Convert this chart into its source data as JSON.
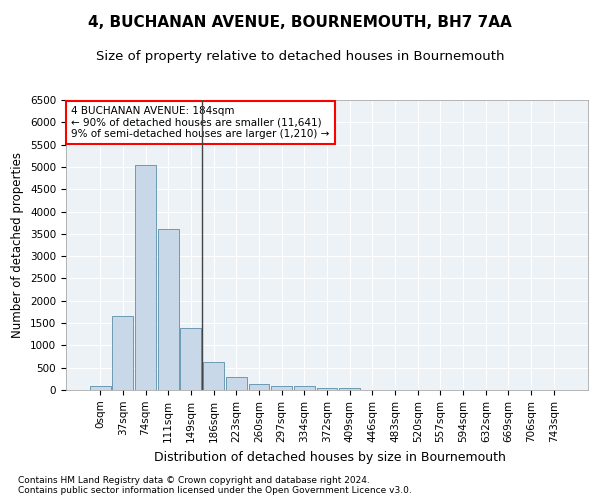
{
  "title": "4, BUCHANAN AVENUE, BOURNEMOUTH, BH7 7AA",
  "subtitle": "Size of property relative to detached houses in Bournemouth",
  "xlabel": "Distribution of detached houses by size in Bournemouth",
  "ylabel": "Number of detached properties",
  "bin_labels": [
    "0sqm",
    "37sqm",
    "74sqm",
    "111sqm",
    "149sqm",
    "186sqm",
    "223sqm",
    "260sqm",
    "297sqm",
    "334sqm",
    "372sqm",
    "409sqm",
    "446sqm",
    "483sqm",
    "520sqm",
    "557sqm",
    "594sqm",
    "632sqm",
    "669sqm",
    "706sqm",
    "743sqm"
  ],
  "bar_values": [
    80,
    1650,
    5050,
    3600,
    1400,
    620,
    290,
    130,
    100,
    80,
    50,
    50,
    0,
    0,
    0,
    0,
    0,
    0,
    0,
    0,
    0
  ],
  "bar_color": "#c8d8e8",
  "bar_edgecolor": "#5a8faa",
  "vline_bin_index": 5,
  "ylim": [
    0,
    6500
  ],
  "yticks": [
    0,
    500,
    1000,
    1500,
    2000,
    2500,
    3000,
    3500,
    4000,
    4500,
    5000,
    5500,
    6000,
    6500
  ],
  "annotation_title": "4 BUCHANAN AVENUE: 184sqm",
  "annotation_line1": "← 90% of detached houses are smaller (11,641)",
  "annotation_line2": "9% of semi-detached houses are larger (1,210) →",
  "annotation_box_color": "white",
  "annotation_box_edgecolor": "red",
  "footnote1": "Contains HM Land Registry data © Crown copyright and database right 2024.",
  "footnote2": "Contains public sector information licensed under the Open Government Licence v3.0.",
  "background_color": "#edf2f7",
  "grid_color": "white",
  "title_fontsize": 11,
  "subtitle_fontsize": 9.5,
  "xlabel_fontsize": 9,
  "ylabel_fontsize": 8.5,
  "tick_fontsize": 7.5,
  "annotation_fontsize": 7.5,
  "footnote_fontsize": 6.5
}
